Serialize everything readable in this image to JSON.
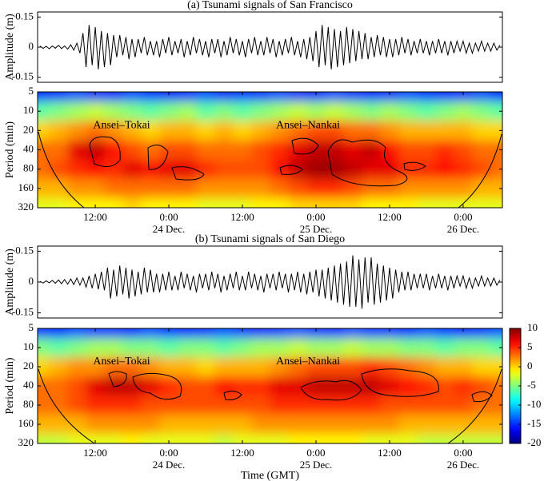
{
  "chart_data": [
    {
      "type": "line",
      "title": "(a) Tsunami signals of San Francisco",
      "ylabel": "Amplitude (m)",
      "color": "#000000",
      "xlim": [
        2.6,
        78.4
      ],
      "ylim": [
        -0.175,
        0.175
      ],
      "yticks": [
        -0.15,
        0,
        0.15
      ],
      "x": [
        3,
        3.5,
        4,
        4.5,
        5,
        5.5,
        6,
        6.5,
        7,
        7.5,
        8,
        8.5,
        9,
        9.5,
        10,
        10.5,
        11,
        11.5,
        12,
        12.5,
        13,
        13.5,
        14,
        14.5,
        15,
        15.5,
        16,
        16.5,
        17,
        17.5,
        18,
        18.5,
        19,
        19.5,
        20,
        20.5,
        21,
        21.5,
        22,
        22.5,
        23,
        23.5,
        24,
        24.5,
        25,
        25.5,
        26,
        26.5,
        27,
        27.5,
        28,
        28.5,
        29,
        29.5,
        30,
        30.5,
        31,
        31.5,
        32,
        32.5,
        33,
        33.5,
        34,
        34.5,
        35,
        35.5,
        36,
        36.5,
        37,
        37.5,
        38,
        38.5,
        39,
        39.5,
        40,
        40.5,
        41,
        41.5,
        42,
        42.5,
        43,
        43.5,
        44,
        44.5,
        45,
        45.5,
        46,
        46.5,
        47,
        47.5,
        48,
        48.5,
        49,
        49.5,
        50,
        50.5,
        51,
        51.5,
        52,
        52.5,
        53,
        53.5,
        54,
        54.5,
        55,
        55.5,
        56,
        56.5,
        57,
        57.5,
        58,
        58.5,
        59,
        59.5,
        60,
        60.5,
        61,
        61.5,
        62,
        62.5,
        63,
        63.5,
        64,
        64.5,
        65,
        65.5,
        66,
        66.5,
        67,
        67.5,
        68,
        68.5,
        69,
        69.5,
        70,
        70.5,
        71,
        71.5,
        72,
        72.5,
        73,
        73.5,
        74,
        74.5,
        75,
        75.5,
        76,
        76.5,
        77,
        77.5,
        78
      ],
      "values": [
        0.005,
        -0.006,
        0.004,
        -0.008,
        0.006,
        -0.005,
        0.009,
        -0.007,
        0.006,
        -0.01,
        0.012,
        -0.015,
        0.02,
        -0.03,
        0.07,
        -0.1,
        0.11,
        -0.09,
        0.1,
        -0.11,
        0.08,
        -0.1,
        0.07,
        -0.09,
        0.06,
        -0.05,
        0.06,
        -0.04,
        0.05,
        -0.06,
        0.04,
        -0.05,
        0.04,
        -0.03,
        0.05,
        -0.04,
        0.03,
        -0.04,
        0.03,
        -0.05,
        0.04,
        -0.03,
        0.05,
        -0.04,
        0.03,
        -0.03,
        0.04,
        -0.05,
        0.03,
        -0.04,
        0.05,
        -0.03,
        0.04,
        -0.04,
        0.03,
        -0.05,
        0.04,
        -0.03,
        0.04,
        -0.05,
        0.03,
        -0.04,
        0.05,
        -0.03,
        0.04,
        -0.04,
        0.03,
        -0.05,
        0.04,
        -0.03,
        0.05,
        -0.04,
        0.03,
        -0.04,
        0.05,
        -0.03,
        0.04,
        -0.05,
        0.03,
        -0.04,
        0.04,
        -0.03,
        0.05,
        -0.04,
        0.03,
        -0.05,
        0.04,
        -0.06,
        0.05,
        -0.07,
        0.08,
        -0.1,
        0.11,
        -0.09,
        0.1,
        -0.11,
        0.09,
        -0.1,
        0.08,
        -0.09,
        0.1,
        -0.08,
        0.09,
        -0.07,
        0.08,
        -0.06,
        0.07,
        -0.06,
        0.05,
        -0.05,
        0.06,
        -0.04,
        0.05,
        -0.05,
        0.04,
        -0.05,
        0.04,
        -0.04,
        0.05,
        -0.03,
        0.04,
        -0.04,
        0.03,
        -0.03,
        0.04,
        -0.03,
        0.03,
        -0.04,
        0.03,
        -0.03,
        0.04,
        -0.03,
        0.03,
        -0.04,
        0.03,
        -0.03,
        0.03,
        -0.02,
        0.03,
        -0.03,
        0.02,
        -0.03,
        0.02,
        -0.02,
        0.03,
        -0.02,
        0.02,
        -0.02,
        0.02,
        -0.015,
        0.01
      ]
    },
    {
      "type": "heatmap",
      "ylabel": "Period (min)",
      "annotations": [
        "Ansei–Tokai",
        "Ansei–Nankai"
      ],
      "xlim": [
        2.6,
        78.4
      ],
      "ylim": [
        5,
        320
      ],
      "ylog": true,
      "zlim": [
        -20,
        10
      ],
      "xticks": [
        {
          "value": 12,
          "label": "12:00"
        },
        {
          "value": 24,
          "label": "0:00",
          "date": "24 Dec."
        },
        {
          "value": 36,
          "label": "12:00"
        },
        {
          "value": 48,
          "label": "0:00",
          "date": "25 Dec."
        },
        {
          "value": 60,
          "label": "12:00"
        },
        {
          "value": 72,
          "label": "0:00",
          "date": "26 Dec."
        }
      ],
      "yticks": [
        5,
        10,
        20,
        40,
        80,
        160,
        320
      ],
      "x": [
        3,
        6,
        9,
        12,
        15,
        18,
        21,
        24,
        27,
        30,
        33,
        36,
        39,
        42,
        45,
        48,
        51,
        54,
        57,
        60,
        63,
        66,
        69,
        72,
        75,
        78
      ],
      "y": [
        5,
        10,
        20,
        40,
        80,
        160,
        320
      ],
      "values": [
        [
          -16,
          -15,
          -14,
          -15,
          -16,
          -14,
          -15,
          -16,
          -15,
          -14,
          -16,
          -15,
          -15,
          -14,
          -15,
          -16,
          -14,
          -15,
          -16,
          -15,
          -14,
          -15,
          -16,
          -15,
          -14,
          -16
        ],
        [
          -6,
          -5,
          -4,
          -3,
          -4,
          -5,
          -6,
          -5,
          -4,
          -6,
          -5,
          -6,
          -5,
          -4,
          -3,
          -4,
          -3,
          -4,
          -5,
          -4,
          -5,
          -6,
          -5,
          -4,
          -5,
          -6
        ],
        [
          0,
          1,
          2,
          3,
          2,
          1,
          0,
          1,
          1,
          0,
          1,
          0,
          1,
          2,
          3,
          4,
          4,
          3,
          3,
          2,
          1,
          1,
          1,
          1,
          0,
          0
        ],
        [
          3,
          3,
          7,
          8,
          6,
          4,
          3,
          4,
          4,
          3,
          3,
          3,
          4,
          5,
          7,
          8,
          8,
          7,
          8,
          6,
          4,
          4,
          5,
          4,
          3,
          3
        ],
        [
          3,
          4,
          5,
          6,
          5,
          7,
          6,
          7,
          7,
          5,
          4,
          4,
          4,
          6,
          8,
          9,
          9,
          8,
          7,
          7,
          5,
          5,
          6,
          5,
          4,
          3
        ],
        [
          1,
          1,
          2,
          2,
          3,
          3,
          3,
          3,
          3,
          2,
          2,
          2,
          2,
          3,
          4,
          5,
          5,
          4,
          3,
          3,
          2,
          2,
          2,
          2,
          1,
          1
        ],
        [
          -2,
          -2,
          -1,
          -1,
          -1,
          0,
          -1,
          -1,
          -1,
          -2,
          -2,
          -2,
          -1,
          -1,
          0,
          0,
          0,
          0,
          -1,
          -1,
          -1,
          -2,
          -2,
          -2,
          -2,
          -2
        ]
      ]
    },
    {
      "type": "line",
      "title": "(b) Tsunami signals of San Diego",
      "ylabel": "Amplitude (m)",
      "color": "#000000",
      "xlim": [
        2.6,
        78.4
      ],
      "ylim": [
        -0.175,
        0.175
      ],
      "yticks": [
        -0.15,
        0,
        0.15
      ],
      "x": [
        3,
        3.5,
        4,
        4.5,
        5,
        5.5,
        6,
        6.5,
        7,
        7.5,
        8,
        8.5,
        9,
        9.5,
        10,
        10.5,
        11,
        11.5,
        12,
        12.5,
        13,
        13.5,
        14,
        14.5,
        15,
        15.5,
        16,
        16.5,
        17,
        17.5,
        18,
        18.5,
        19,
        19.5,
        20,
        20.5,
        21,
        21.5,
        22,
        22.5,
        23,
        23.5,
        24,
        24.5,
        25,
        25.5,
        26,
        26.5,
        27,
        27.5,
        28,
        28.5,
        29,
        29.5,
        30,
        30.5,
        31,
        31.5,
        32,
        32.5,
        33,
        33.5,
        34,
        34.5,
        35,
        35.5,
        36,
        36.5,
        37,
        37.5,
        38,
        38.5,
        39,
        39.5,
        40,
        40.5,
        41,
        41.5,
        42,
        42.5,
        43,
        43.5,
        44,
        44.5,
        45,
        45.5,
        46,
        46.5,
        47,
        47.5,
        48,
        48.5,
        49,
        49.5,
        50,
        50.5,
        51,
        51.5,
        52,
        52.5,
        53,
        53.5,
        54,
        54.5,
        55,
        55.5,
        56,
        56.5,
        57,
        57.5,
        58,
        58.5,
        59,
        59.5,
        60,
        60.5,
        61,
        61.5,
        62,
        62.5,
        63,
        63.5,
        64,
        64.5,
        65,
        65.5,
        66,
        66.5,
        67,
        67.5,
        68,
        68.5,
        69,
        69.5,
        70,
        70.5,
        71,
        71.5,
        72,
        72.5,
        73,
        73.5,
        74,
        74.5,
        75,
        75.5,
        76,
        76.5,
        77,
        77.5,
        78
      ],
      "values": [
        0.004,
        -0.005,
        0.006,
        -0.004,
        0.008,
        -0.006,
        0.01,
        -0.008,
        0.012,
        -0.01,
        0.015,
        -0.012,
        0.02,
        -0.015,
        0.02,
        -0.025,
        0.03,
        -0.03,
        0.04,
        -0.035,
        0.05,
        -0.04,
        0.07,
        -0.08,
        0.06,
        -0.07,
        0.08,
        -0.06,
        0.07,
        -0.08,
        0.06,
        -0.07,
        0.05,
        -0.06,
        0.07,
        -0.05,
        0.06,
        -0.05,
        0.04,
        -0.05,
        0.04,
        -0.04,
        0.05,
        -0.04,
        0.03,
        -0.04,
        0.05,
        -0.03,
        0.04,
        -0.04,
        0.03,
        -0.05,
        0.04,
        -0.03,
        0.04,
        -0.04,
        0.05,
        -0.03,
        0.04,
        -0.05,
        0.03,
        -0.04,
        0.04,
        -0.03,
        0.05,
        -0.04,
        0.03,
        -0.04,
        0.05,
        -0.03,
        0.04,
        -0.04,
        0.03,
        -0.05,
        0.04,
        -0.03,
        0.04,
        -0.04,
        0.05,
        -0.03,
        0.04,
        -0.05,
        0.04,
        -0.04,
        0.05,
        -0.05,
        0.04,
        -0.06,
        0.05,
        -0.05,
        0.06,
        -0.07,
        0.06,
        -0.08,
        0.07,
        -0.09,
        0.08,
        -0.1,
        0.09,
        -0.11,
        0.1,
        -0.12,
        0.13,
        -0.12,
        0.11,
        -0.13,
        0.12,
        -0.1,
        0.12,
        -0.11,
        0.09,
        -0.1,
        0.08,
        -0.09,
        0.07,
        -0.08,
        0.06,
        -0.05,
        0.05,
        -0.04,
        0.05,
        -0.04,
        0.04,
        -0.03,
        0.04,
        -0.03,
        0.04,
        -0.04,
        0.03,
        -0.03,
        0.04,
        -0.03,
        0.03,
        -0.04,
        0.03,
        -0.03,
        0.03,
        -0.02,
        0.03,
        -0.03,
        0.02,
        -0.03,
        0.02,
        -0.02,
        0.03,
        -0.02,
        0.02,
        -0.02,
        0.02,
        -0.015,
        0.01
      ]
    },
    {
      "type": "heatmap",
      "ylabel": "Period (min)",
      "xlabel": "Time (GMT)",
      "annotations": [
        "Ansei–Tokai",
        "Ansei–Nankai"
      ],
      "xlim": [
        2.6,
        78.4
      ],
      "ylim": [
        5,
        320
      ],
      "ylog": true,
      "zlim": [
        -20,
        10
      ],
      "colorbar_ticks": [
        10,
        5,
        0,
        -5,
        -10,
        -15,
        -20
      ],
      "xticks": [
        {
          "value": 12,
          "label": "12:00"
        },
        {
          "value": 24,
          "label": "0:00",
          "date": "24 Dec."
        },
        {
          "value": 36,
          "label": "12:00"
        },
        {
          "value": 48,
          "label": "0:00",
          "date": "25 Dec."
        },
        {
          "value": 60,
          "label": "12:00"
        },
        {
          "value": 72,
          "label": "0:00",
          "date": "26 Dec."
        }
      ],
      "yticks": [
        5,
        10,
        20,
        40,
        80,
        160,
        320
      ],
      "x": [
        3,
        6,
        9,
        12,
        15,
        18,
        21,
        24,
        27,
        30,
        33,
        36,
        39,
        42,
        45,
        48,
        51,
        54,
        57,
        60,
        63,
        66,
        69,
        72,
        75,
        78
      ],
      "y": [
        5,
        10,
        20,
        40,
        80,
        160,
        320
      ],
      "values": [
        [
          -15,
          -16,
          -14,
          -15,
          -15,
          -16,
          -14,
          -15,
          -16,
          -15,
          -14,
          -15,
          -16,
          -15,
          -14,
          -15,
          -16,
          -14,
          -15,
          -15,
          -16,
          -14,
          -15,
          -16,
          -15,
          -14
        ],
        [
          -5,
          -6,
          -5,
          -4,
          -4,
          -5,
          -5,
          -6,
          -5,
          -5,
          -6,
          -5,
          -4,
          -4,
          -3,
          -4,
          -4,
          -3,
          -4,
          -4,
          -5,
          -5,
          -6,
          -5,
          -5,
          -6
        ],
        [
          0,
          1,
          2,
          2,
          3,
          3,
          2,
          1,
          1,
          0,
          1,
          1,
          1,
          2,
          3,
          4,
          4,
          4,
          5,
          4,
          3,
          2,
          1,
          1,
          0,
          0
        ],
        [
          3,
          3,
          4,
          7,
          8,
          8,
          7,
          5,
          4,
          4,
          6,
          5,
          5,
          7,
          7,
          8,
          8,
          8,
          8,
          7,
          6,
          5,
          4,
          5,
          4,
          3
        ],
        [
          3,
          3,
          4,
          5,
          5,
          5,
          4,
          4,
          4,
          4,
          4,
          4,
          4,
          5,
          5,
          5,
          5,
          5,
          5,
          4,
          4,
          4,
          4,
          4,
          3,
          3
        ],
        [
          1,
          1,
          1,
          2,
          2,
          2,
          2,
          1,
          1,
          1,
          1,
          1,
          2,
          2,
          2,
          2,
          2,
          2,
          2,
          2,
          1,
          1,
          1,
          1,
          1,
          1
        ],
        [
          -3,
          -3,
          -2,
          -2,
          -2,
          -1,
          -2,
          -2,
          -2,
          -2,
          -3,
          -2,
          -2,
          -2,
          -1,
          -1,
          -1,
          -1,
          -2,
          -2,
          -2,
          -3,
          -3,
          -3,
          -3,
          -3
        ]
      ]
    }
  ]
}
